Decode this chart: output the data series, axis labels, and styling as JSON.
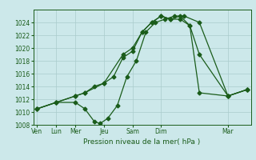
{
  "background_color": "#cce8ea",
  "grid_color": "#aacccc",
  "line_color": "#1a5c1a",
  "title": "Pression niveau de la mer( hPa )",
  "ylim": [
    1008,
    1026
  ],
  "xlim": [
    -0.2,
    11.2
  ],
  "yticks": [
    1008,
    1010,
    1012,
    1014,
    1016,
    1018,
    1020,
    1022,
    1024
  ],
  "series1_x": [
    0,
    1,
    2,
    2.5,
    3,
    3.3,
    3.7,
    4.2,
    4.7,
    5.2,
    5.7,
    6.2,
    6.7,
    7.2,
    7.7,
    8.5,
    10,
    11
  ],
  "series1_y": [
    1010.5,
    1011.5,
    1011.5,
    1010.5,
    1008.5,
    1008.2,
    1009.0,
    1011.0,
    1015.5,
    1018.0,
    1022.5,
    1024.0,
    1024.5,
    1025.0,
    1025.0,
    1024.0,
    1012.5,
    1013.5
  ],
  "series2_x": [
    0,
    1,
    2,
    2.5,
    3.0,
    3.5,
    4.0,
    4.5,
    5.0,
    5.5,
    6.0,
    6.5,
    7.0,
    7.5,
    8.0,
    8.5,
    10,
    11
  ],
  "series2_y": [
    1010.5,
    1011.5,
    1012.5,
    1013.0,
    1014.0,
    1014.5,
    1015.5,
    1018.5,
    1019.5,
    1022.5,
    1024.0,
    1025.0,
    1024.5,
    1024.5,
    1023.5,
    1019.0,
    1012.5,
    1013.5
  ],
  "series3_x": [
    0,
    1,
    2,
    2.5,
    3.5,
    4.5,
    5.0,
    5.5,
    6.0,
    6.5,
    7.0,
    7.5,
    8.0,
    8.5,
    10,
    11
  ],
  "series3_y": [
    1010.5,
    1011.5,
    1012.5,
    1013.0,
    1014.5,
    1019.0,
    1020.0,
    1022.5,
    1024.0,
    1025.0,
    1024.5,
    1025.0,
    1023.5,
    1013.0,
    1012.5,
    1013.5
  ],
  "xtick_labels_all": [
    "Ven",
    "Lun",
    "Mer",
    "Jeu",
    "Sam",
    "Dim",
    "Mar"
  ],
  "xtick_pos_labels": [
    0,
    1,
    2,
    3.5,
    5,
    6.5,
    10
  ]
}
